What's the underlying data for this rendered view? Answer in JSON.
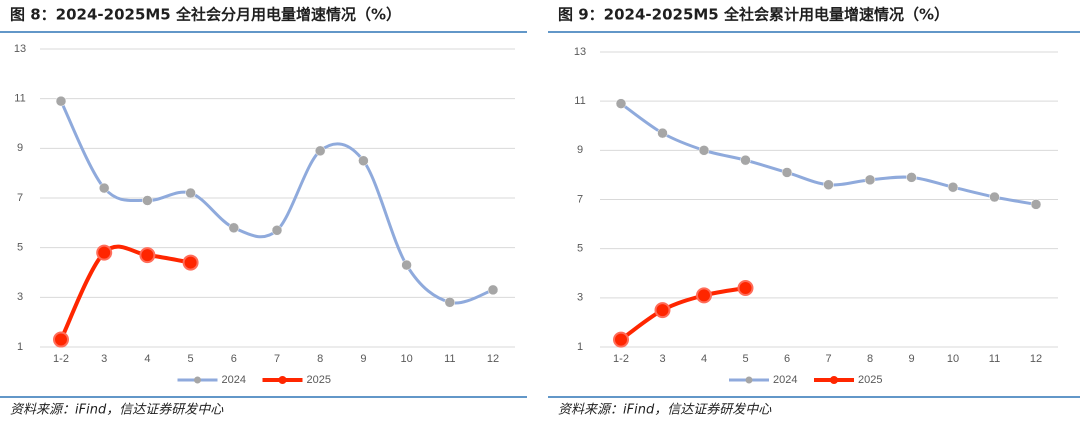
{
  "chart_data": [
    {
      "type": "line",
      "title": "图 8：2024-2025M5 全社会分月用电量增速情况（%）",
      "source": "资料来源：iFind，信达证券研发中心",
      "categories": [
        "1-2",
        "3",
        "4",
        "5",
        "6",
        "7",
        "8",
        "9",
        "10",
        "11",
        "12"
      ],
      "ylim": [
        1,
        13
      ],
      "yticks": [
        1,
        3,
        5,
        7,
        9,
        11,
        13
      ],
      "grid": true,
      "smooth": true,
      "legend": "bottom",
      "series": [
        {
          "name": "2024",
          "color": "#8faadc",
          "marker_color": "#a6a6a6",
          "values": [
            10.9,
            7.4,
            6.9,
            7.2,
            5.8,
            5.7,
            8.9,
            8.5,
            4.3,
            2.8,
            3.3
          ]
        },
        {
          "name": "2025",
          "color": "#ff2600",
          "marker_color": "#ff2600",
          "values": [
            1.3,
            4.8,
            4.7,
            4.4,
            null,
            null,
            null,
            null,
            null,
            null,
            null
          ]
        }
      ]
    },
    {
      "type": "line",
      "title": "图 9：2024-2025M5 全社会累计用电量增速情况（%）",
      "source": "资料来源：iFind，信达证券研发中心",
      "categories": [
        "1-2",
        "3",
        "4",
        "5",
        "6",
        "7",
        "8",
        "9",
        "10",
        "11",
        "12"
      ],
      "ylim": [
        1,
        13
      ],
      "yticks": [
        1,
        3,
        5,
        7,
        9,
        11,
        13
      ],
      "grid": true,
      "smooth": true,
      "legend": "bottom",
      "series": [
        {
          "name": "2024",
          "color": "#8faadc",
          "marker_color": "#a6a6a6",
          "values": [
            10.9,
            9.7,
            9.0,
            8.6,
            8.1,
            7.6,
            7.8,
            7.9,
            7.5,
            7.1,
            6.8
          ]
        },
        {
          "name": "2025",
          "color": "#ff2600",
          "marker_color": "#ff2600",
          "values": [
            1.3,
            2.5,
            3.1,
            3.4,
            null,
            null,
            null,
            null,
            null,
            null,
            null
          ]
        }
      ]
    }
  ]
}
